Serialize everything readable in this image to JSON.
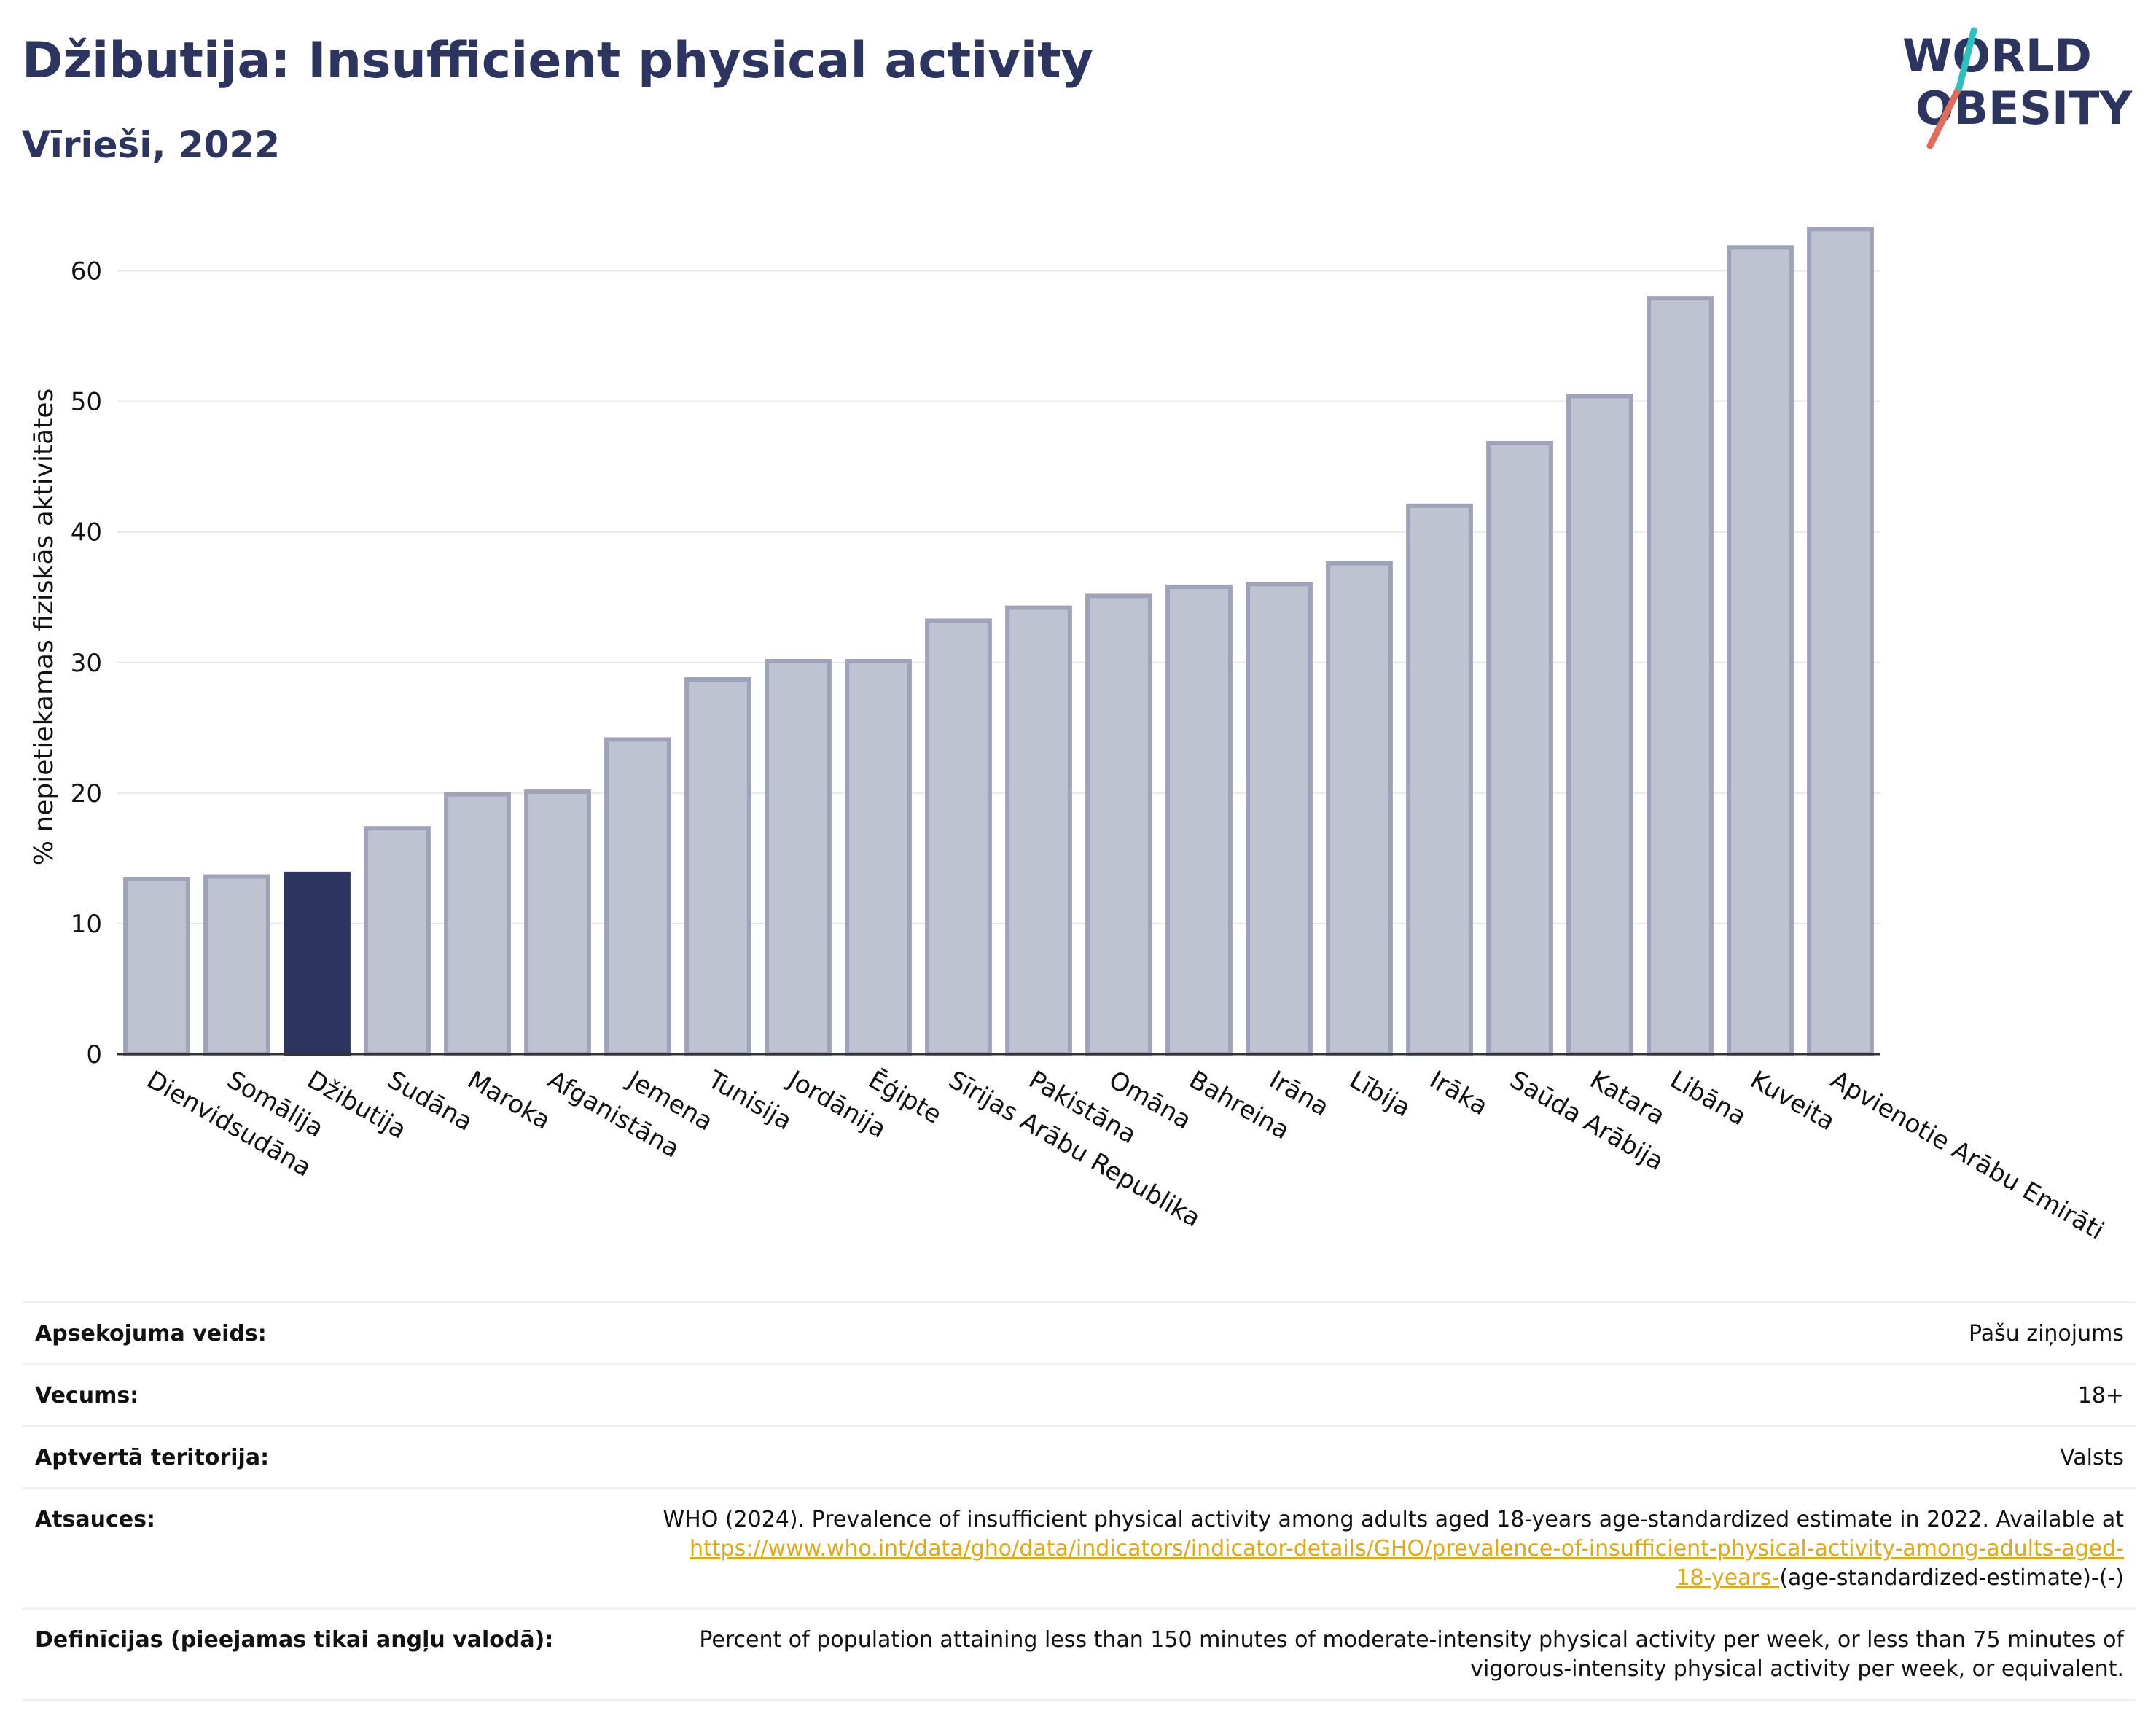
{
  "header": {
    "title": "Džibutija: Insufficient physical activity",
    "subtitle": "Vīrieši, 2022"
  },
  "logo": {
    "line1": "WORLD",
    "line2": "OBESITY"
  },
  "colors": {
    "bar": "#bfc3d1",
    "bar_stroke": "#9ea3ba",
    "highlight": "#2b3560",
    "title": "#2b3560",
    "link": "#e2a812"
  },
  "chart_data": {
    "type": "bar",
    "title": "Džibutija: Insufficient physical activity",
    "subtitle": "Vīrieši, 2022",
    "xlabel": "",
    "ylabel": "% nepietiekamas fiziskās aktivitātes",
    "ylim": [
      0,
      65
    ],
    "yticks": [
      0,
      10,
      20,
      30,
      40,
      50,
      60
    ],
    "grid": true,
    "highlight": "Džibutija",
    "categories": [
      "Dienvidsudāna",
      "Somālija",
      "Džibutija",
      "Sudāna",
      "Maroka",
      "Afganistāna",
      "Jemena",
      "Tunisija",
      "Jordānija",
      "Ēģipte",
      "Sīrijas Arābu Republika",
      "Pakistāna",
      "Omāna",
      "Bahreina",
      "Irāna",
      "Lībija",
      "Irāka",
      "Saūda Arābija",
      "Katara",
      "Libāna",
      "Kuveita",
      "Apvienotie Arābu Emirāti"
    ],
    "values": [
      13.4,
      13.6,
      13.8,
      17.3,
      19.9,
      20.1,
      24.1,
      28.7,
      30.1,
      30.1,
      33.2,
      34.2,
      35.1,
      35.8,
      36.0,
      37.6,
      42.0,
      46.8,
      50.4,
      57.9,
      61.8,
      63.2
    ]
  },
  "meta": {
    "survey_label": "Apsekojuma veids:",
    "survey_value": "Pašu ziņojums",
    "age_label": "Vecums:",
    "age_value": "18+",
    "coverage_label": "Aptvertā teritorija:",
    "coverage_value": "Valsts",
    "refs_label": "Atsauces:",
    "refs_text": "WHO (2024). Prevalence of insufficient physical activity among adults aged 18-years age-standardized estimate in 2022. Available at",
    "refs_link_line1": "https://www.who.int/data/gho/data/indicators/indicator-details/GHO/prevalence-of-insufficient-physical-activity-among-adults-aged-",
    "refs_link_line2": "18-years-",
    "refs_suffix": "(age-standardized-estimate)-(-)",
    "defs_label": "Definīcijas (pieejamas tikai angļu valodā):",
    "defs_line1": "Percent of population attaining less than 150 minutes of moderate-intensity physical activity per week, or less than 75 minutes of",
    "defs_line2": "vigorous-intensity physical activity per week, or equivalent."
  }
}
